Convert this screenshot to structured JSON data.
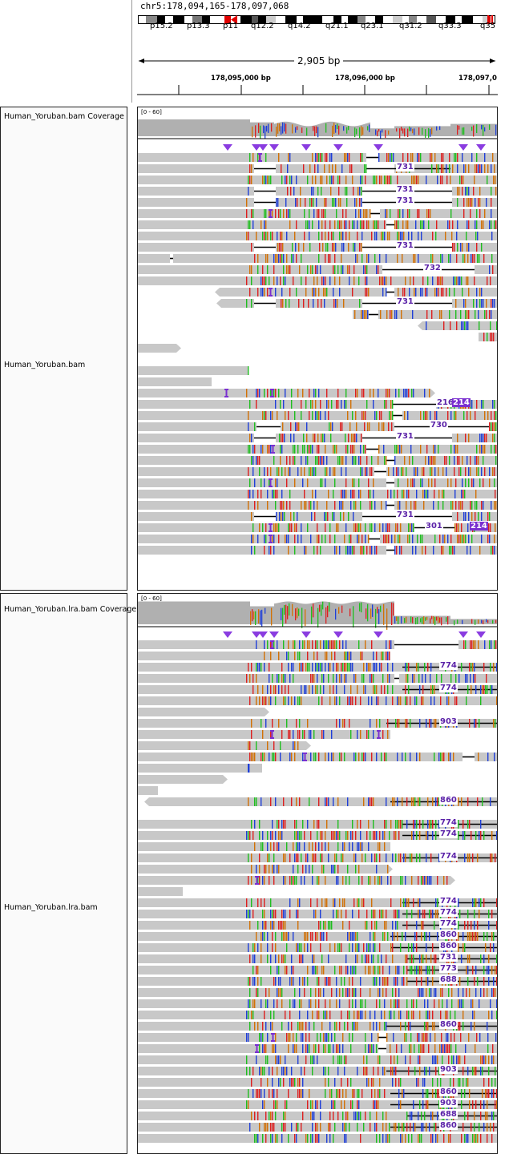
{
  "locus": "chr5:178,094,165-178,097,068",
  "ideogram": {
    "bands": [
      "p15.2",
      "p13.3",
      "p11",
      "q12.2",
      "q14.2",
      "q21.1",
      "q23.1",
      "q31.2",
      "q33.3",
      "q35"
    ]
  },
  "ruler": {
    "span": "2,905 bp",
    "ticks": [
      "178,095,000 bp",
      "178,096,000 bp",
      "178,097,0"
    ]
  },
  "tracks": {
    "coverage1": {
      "name": "Human_Yoruban.bam Coverage",
      "range": "[0 - 60]"
    },
    "alignments1": {
      "name": "Human_Yoruban.bam"
    },
    "coverage2": {
      "name": "Human_Yoruban.lra.bam Coverage",
      "range": "[0 - 60]"
    },
    "alignments2": {
      "name": "Human_Yoruban.lra.bam"
    }
  },
  "gap_labels_1": [
    "731",
    "731",
    "731",
    "731",
    "732",
    "731",
    "216",
    "730",
    "731",
    "731",
    "301"
  ],
  "insertion_labels_1": [
    "214",
    "214"
  ],
  "gap_labels_2": [
    "774",
    "774",
    "903",
    "860",
    "774",
    "774",
    "774",
    "774",
    "774",
    "774",
    "860",
    "860",
    "731",
    "773",
    "688",
    "860",
    "903",
    "860",
    "903",
    "688",
    "860"
  ],
  "colors": {
    "read": "#c8c8c8",
    "coverage": "#b0b0b0",
    "insertion": "#7a2fd0",
    "A": "#1fbe1f",
    "C": "#1f3fd8",
    "G": "#d17105",
    "T": "#dd1f1f",
    "centromere": "#e00000"
  }
}
